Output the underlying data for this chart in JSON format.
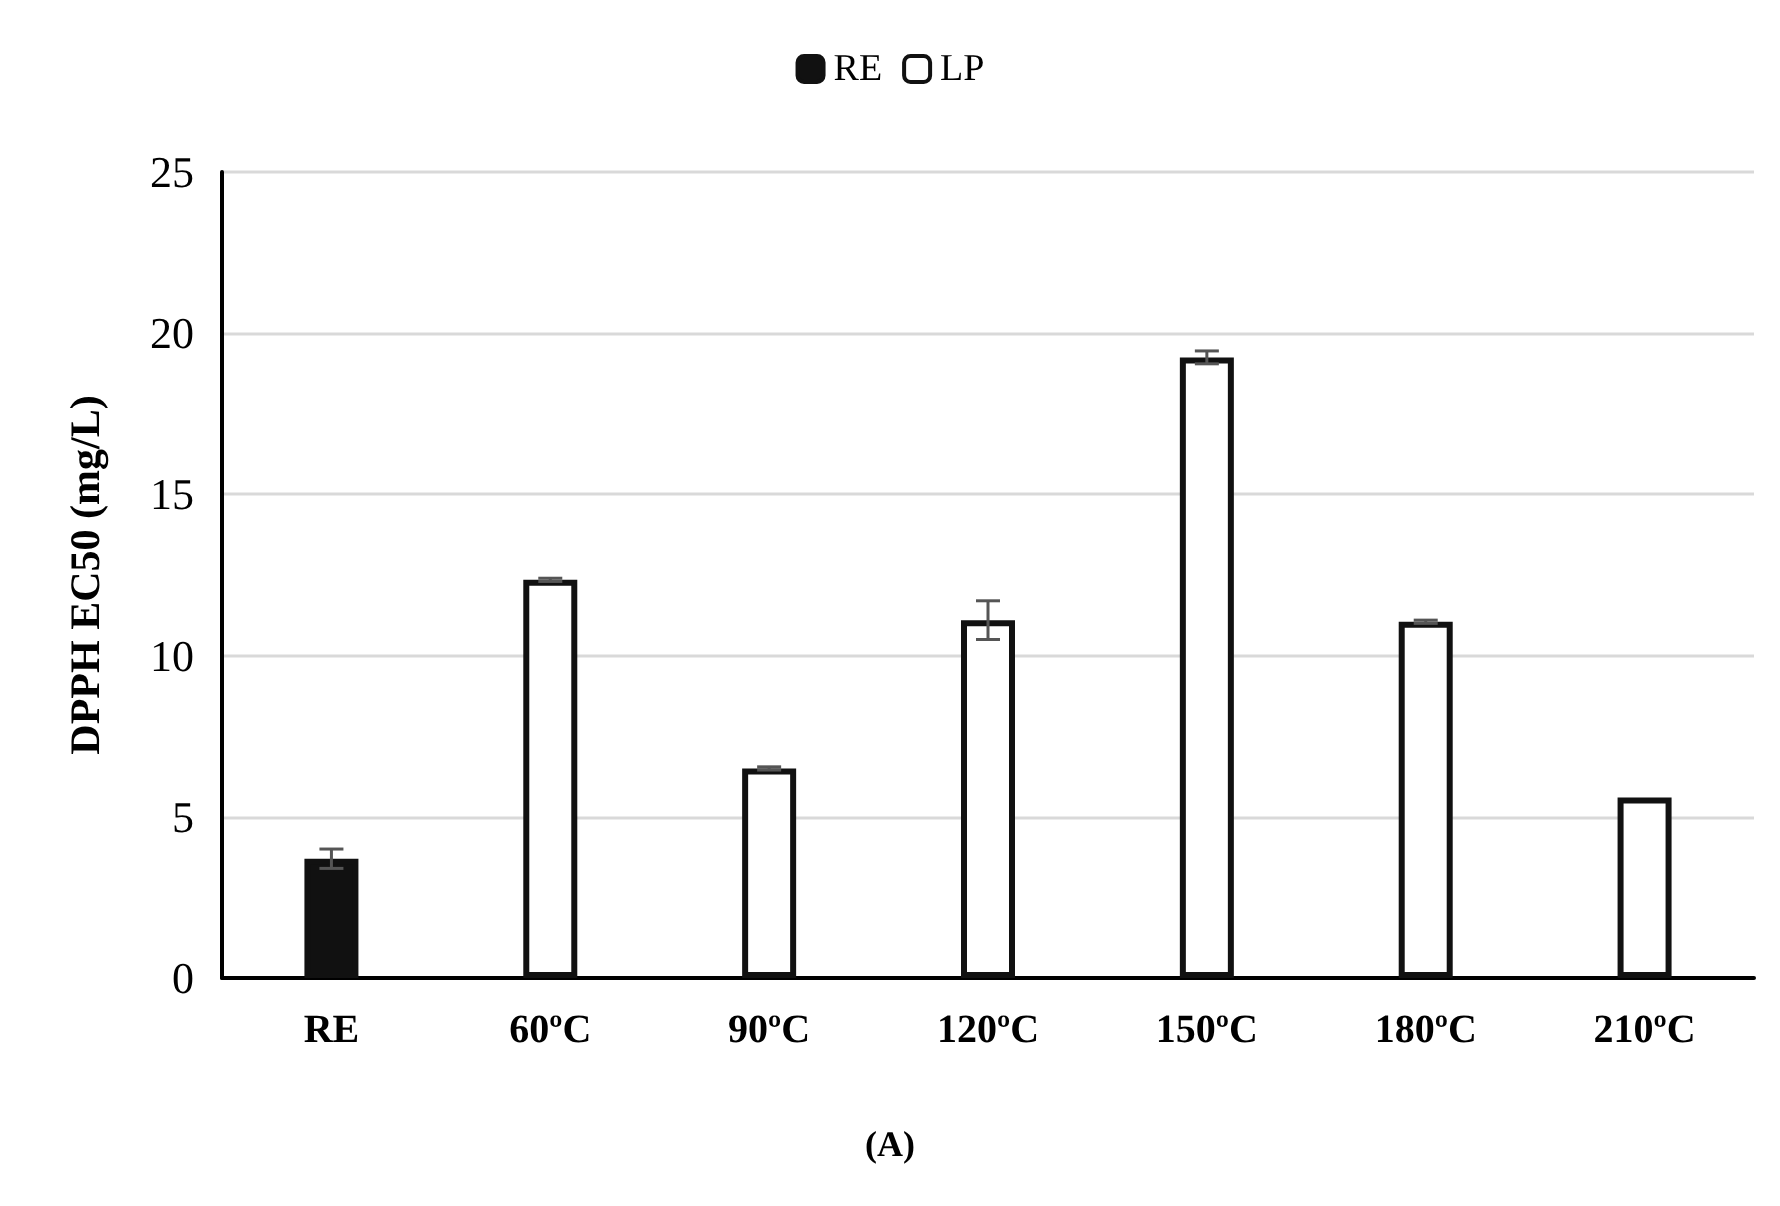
{
  "chart_data": {
    "type": "bar",
    "categories": [
      "RE",
      "60ºC",
      "90ºC",
      "120ºC",
      "150ºC",
      "180ºC",
      "210ºC"
    ],
    "ylabel": "DPPH EC50 (mg/L)",
    "annotations": [
      "(A)"
    ],
    "ylim": [
      0,
      25
    ],
    "yticks": [
      0,
      5,
      10,
      15,
      20,
      25
    ],
    "grid": "y",
    "legend": "top",
    "series": [
      {
        "name": "RE",
        "color": "#111111",
        "values": [
          3.7,
          null,
          null,
          null,
          null,
          null,
          null
        ],
        "errors": [
          0.3,
          null,
          null,
          null,
          null,
          null,
          null
        ]
      },
      {
        "name": "LP",
        "color": "#ffffff",
        "values": [
          null,
          12.35,
          6.5,
          11.1,
          19.25,
          11.05,
          5.6
        ],
        "errors": [
          null,
          0.05,
          0.05,
          0.6,
          0.2,
          0.05,
          null
        ]
      }
    ]
  }
}
